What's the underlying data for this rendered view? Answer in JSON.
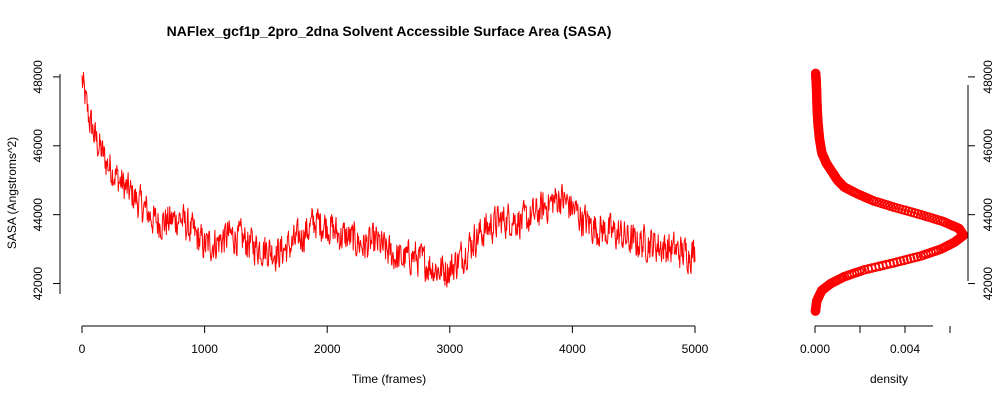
{
  "chart_data": [
    {
      "type": "line",
      "title": "NAFlex_gcf1p_2pro_2dna Solvent Accessible Surface Area (SASA)",
      "xlabel": "Time (frames)",
      "ylabel": "SASA (Angstroms^2)",
      "xlim": [
        0,
        5000
      ],
      "ylim": [
        41000,
        48200
      ],
      "x_ticks": [
        0,
        1000,
        2000,
        3000,
        4000,
        5000
      ],
      "y_ticks": [
        42000,
        44000,
        46000,
        48000
      ],
      "grid": false,
      "series_color": "#ff0000",
      "trend": [
        {
          "x": 0,
          "y": 47900
        },
        {
          "x": 20,
          "y": 47500
        },
        {
          "x": 50,
          "y": 46900
        },
        {
          "x": 100,
          "y": 46300
        },
        {
          "x": 150,
          "y": 45900
        },
        {
          "x": 200,
          "y": 45500
        },
        {
          "x": 250,
          "y": 45300
        },
        {
          "x": 300,
          "y": 45000
        },
        {
          "x": 400,
          "y": 44600
        },
        {
          "x": 500,
          "y": 44200
        },
        {
          "x": 600,
          "y": 43800
        },
        {
          "x": 700,
          "y": 43800
        },
        {
          "x": 800,
          "y": 43900
        },
        {
          "x": 900,
          "y": 43500
        },
        {
          "x": 1000,
          "y": 43100
        },
        {
          "x": 1100,
          "y": 43200
        },
        {
          "x": 1200,
          "y": 43400
        },
        {
          "x": 1300,
          "y": 43300
        },
        {
          "x": 1400,
          "y": 43100
        },
        {
          "x": 1500,
          "y": 43000
        },
        {
          "x": 1600,
          "y": 42900
        },
        {
          "x": 1700,
          "y": 43100
        },
        {
          "x": 1800,
          "y": 43400
        },
        {
          "x": 1900,
          "y": 43800
        },
        {
          "x": 2000,
          "y": 43700
        },
        {
          "x": 2100,
          "y": 43400
        },
        {
          "x": 2200,
          "y": 43300
        },
        {
          "x": 2300,
          "y": 43100
        },
        {
          "x": 2400,
          "y": 43200
        },
        {
          "x": 2500,
          "y": 42900
        },
        {
          "x": 2600,
          "y": 42700
        },
        {
          "x": 2700,
          "y": 42800
        },
        {
          "x": 2800,
          "y": 42600
        },
        {
          "x": 2900,
          "y": 42400
        },
        {
          "x": 3000,
          "y": 42400
        },
        {
          "x": 3100,
          "y": 42800
        },
        {
          "x": 3200,
          "y": 43300
        },
        {
          "x": 3300,
          "y": 43600
        },
        {
          "x": 3400,
          "y": 43800
        },
        {
          "x": 3500,
          "y": 43900
        },
        {
          "x": 3600,
          "y": 43800
        },
        {
          "x": 3700,
          "y": 44000
        },
        {
          "x": 3800,
          "y": 44300
        },
        {
          "x": 3900,
          "y": 44500
        },
        {
          "x": 4000,
          "y": 44200
        },
        {
          "x": 4100,
          "y": 43800
        },
        {
          "x": 4200,
          "y": 43600
        },
        {
          "x": 4300,
          "y": 43500
        },
        {
          "x": 4400,
          "y": 43400
        },
        {
          "x": 4500,
          "y": 43200
        },
        {
          "x": 4600,
          "y": 43200
        },
        {
          "x": 4700,
          "y": 43100
        },
        {
          "x": 4800,
          "y": 43000
        },
        {
          "x": 4900,
          "y": 42900
        },
        {
          "x": 5000,
          "y": 42900
        }
      ],
      "noise_amplitude": 500
    },
    {
      "type": "scatter",
      "xlabel": "density",
      "ylabel": "",
      "xlim": [
        0,
        0.0068
      ],
      "ylim": [
        41000,
        48200
      ],
      "x_ticks": [
        0.0,
        0.002,
        0.004,
        0.006
      ],
      "x_tick_labels": [
        "0.000",
        "",
        "0.004",
        ""
      ],
      "y_ticks": [
        42000,
        44000,
        46000,
        48000
      ],
      "y_axis_side": "right",
      "grid": false,
      "series_color": "#ff0000",
      "points": [
        {
          "y": 41200,
          "x": 2e-05
        },
        {
          "y": 41500,
          "x": 8e-05
        },
        {
          "y": 41800,
          "x": 0.0003
        },
        {
          "y": 42000,
          "x": 0.0007
        },
        {
          "y": 42200,
          "x": 0.0013
        },
        {
          "y": 42400,
          "x": 0.0022
        },
        {
          "y": 42600,
          "x": 0.0035
        },
        {
          "y": 42800,
          "x": 0.0047
        },
        {
          "y": 43000,
          "x": 0.0056
        },
        {
          "y": 43200,
          "x": 0.0062
        },
        {
          "y": 43400,
          "x": 0.0066
        },
        {
          "y": 43600,
          "x": 0.0064
        },
        {
          "y": 43800,
          "x": 0.0057
        },
        {
          "y": 44000,
          "x": 0.0047
        },
        {
          "y": 44200,
          "x": 0.0036
        },
        {
          "y": 44400,
          "x": 0.0026
        },
        {
          "y": 44600,
          "x": 0.0019
        },
        {
          "y": 44800,
          "x": 0.0013
        },
        {
          "y": 45000,
          "x": 0.001
        },
        {
          "y": 45200,
          "x": 0.0008
        },
        {
          "y": 45500,
          "x": 0.0005
        },
        {
          "y": 45800,
          "x": 0.0003
        },
        {
          "y": 46200,
          "x": 0.0002
        },
        {
          "y": 46600,
          "x": 0.00014
        },
        {
          "y": 47000,
          "x": 0.0001
        },
        {
          "y": 47400,
          "x": 8e-05
        },
        {
          "y": 47800,
          "x": 6e-05
        },
        {
          "y": 48100,
          "x": 3e-05
        }
      ]
    }
  ]
}
